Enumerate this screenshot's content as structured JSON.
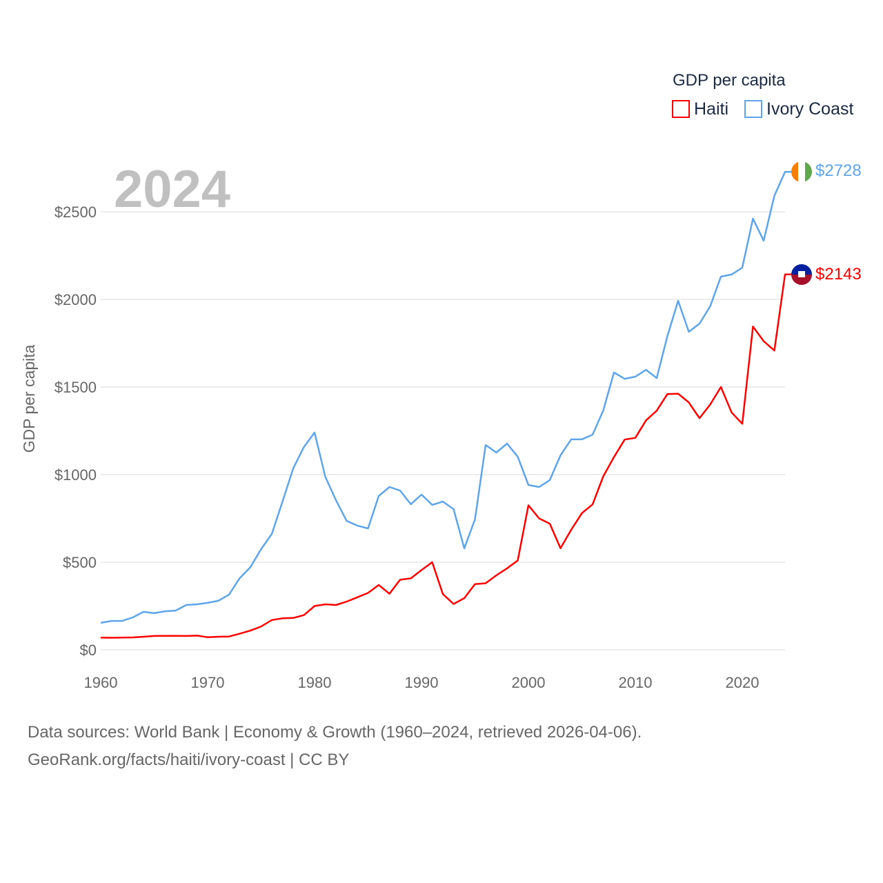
{
  "chart_data": {
    "type": "line",
    "title": "GDP per capita",
    "year_label": "2024",
    "xlabel": "",
    "ylabel": "GDP per capita",
    "xlim": [
      1960,
      2024
    ],
    "ylim": [
      0,
      2500
    ],
    "x_ticks": [
      1960,
      1970,
      1980,
      1990,
      2000,
      2010,
      2020
    ],
    "y_ticks": [
      0,
      500,
      1000,
      1500,
      2000,
      2500
    ],
    "y_tick_labels": [
      "$0",
      "$500",
      "$1000",
      "$1500",
      "$2000",
      "$2500"
    ],
    "grid": true,
    "legend_position": "top-right",
    "x": [
      1960,
      1961,
      1962,
      1963,
      1964,
      1965,
      1966,
      1967,
      1968,
      1969,
      1970,
      1971,
      1972,
      1973,
      1974,
      1975,
      1976,
      1977,
      1978,
      1979,
      1980,
      1981,
      1982,
      1983,
      1984,
      1985,
      1986,
      1987,
      1988,
      1989,
      1990,
      1991,
      1992,
      1993,
      1994,
      1995,
      1996,
      1997,
      1998,
      1999,
      2000,
      2001,
      2002,
      2003,
      2004,
      2005,
      2006,
      2007,
      2008,
      2009,
      2010,
      2011,
      2012,
      2013,
      2014,
      2015,
      2016,
      2017,
      2018,
      2019,
      2020,
      2021,
      2022,
      2023,
      2024
    ],
    "series": [
      {
        "name": "Haiti",
        "color": "#ff0000",
        "end_label": "$2143",
        "flag": "haiti-flag",
        "values": [
          70,
          69,
          70,
          71,
          75,
          79,
          80,
          80,
          79,
          81,
          72,
          75,
          76,
          92,
          110,
          133,
          170,
          180,
          182,
          198,
          250,
          260,
          256,
          275,
          300,
          325,
          370,
          320,
          400,
          408,
          455,
          500,
          318,
          262,
          295,
          375,
          380,
          425,
          465,
          510,
          825,
          750,
          720,
          580,
          685,
          780,
          830,
          990,
          1100,
          1200,
          1210,
          1310,
          1365,
          1460,
          1462,
          1412,
          1322,
          1400,
          1500,
          1355,
          1290,
          1845,
          1762,
          1708,
          2143
        ]
      },
      {
        "name": "Ivory Coast",
        "color": "#5da5ea",
        "end_label": "$2728",
        "flag": "ivory-coast-flag",
        "values": [
          154,
          165,
          165,
          185,
          217,
          209,
          220,
          224,
          256,
          260,
          268,
          280,
          315,
          409,
          472,
          575,
          661,
          846,
          1035,
          1157,
          1240,
          988,
          854,
          736,
          709,
          693,
          878,
          929,
          909,
          831,
          886,
          827,
          846,
          803,
          579,
          744,
          1169,
          1126,
          1177,
          1102,
          941,
          929,
          969,
          1110,
          1201,
          1201,
          1228,
          1366,
          1583,
          1547,
          1559,
          1598,
          1551,
          1791,
          1992,
          1815,
          1862,
          1961,
          2130,
          2142,
          2181,
          2461,
          2335,
          2591,
          2728
        ]
      }
    ]
  },
  "footer": {
    "line1": "Data sources: World Bank | Economy & Growth (1960–2024, retrieved 2026-04-06).",
    "line2": "GeoRank.org/facts/haiti/ivory-coast | CC BY"
  }
}
